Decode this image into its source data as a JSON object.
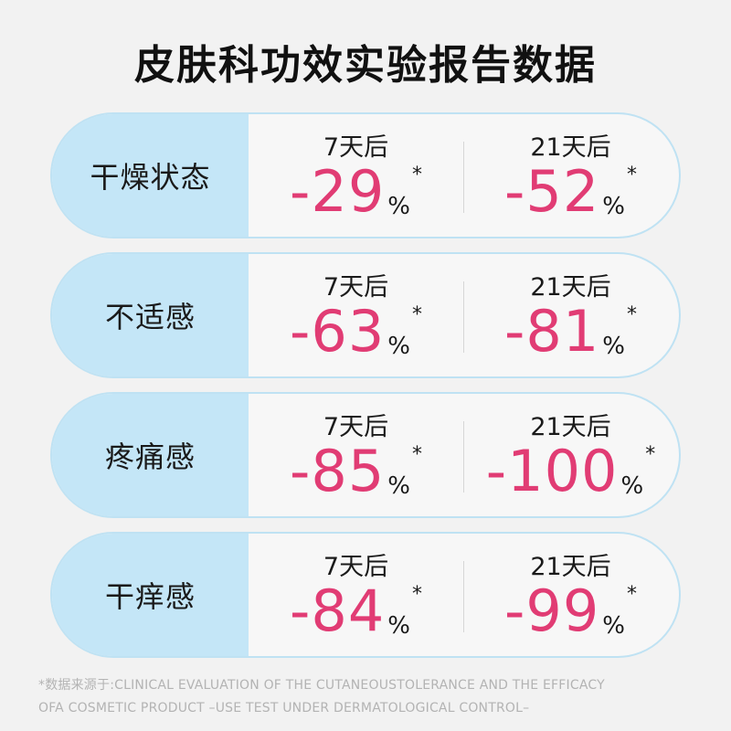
{
  "title": "皮肤科功效实验报告数据",
  "chart_data": {
    "type": "table",
    "title": "皮肤科功效实验报告数据",
    "columns": [
      "7天后",
      "21天后"
    ],
    "unit": "%",
    "marker": "*",
    "rows": [
      {
        "label": "干燥状态",
        "values": [
          -29,
          -52
        ],
        "display": [
          "-29",
          "-52"
        ]
      },
      {
        "label": "不适感",
        "values": [
          -63,
          -81
        ],
        "display": [
          "-63",
          "-81"
        ]
      },
      {
        "label": "疼痛感",
        "values": [
          -85,
          -100
        ],
        "display": [
          "-85",
          "-100"
        ]
      },
      {
        "label": "干痒感",
        "values": [
          -84,
          -99
        ],
        "display": [
          "-84",
          "-99"
        ]
      }
    ]
  },
  "colors": {
    "value": "#e13c74",
    "label_bg": "#c4e6f7",
    "border": "#bfe2f3"
  },
  "footnote": {
    "line1": "*数据来源于:CLINICAL EVALUATION OF THE CUTANEOUSTOLERANCE AND THE EFFICACY",
    "line2": "OFA COSMETIC PRODUCT –USE TEST UNDER DERMATOLOGICAL CONTROL–"
  }
}
